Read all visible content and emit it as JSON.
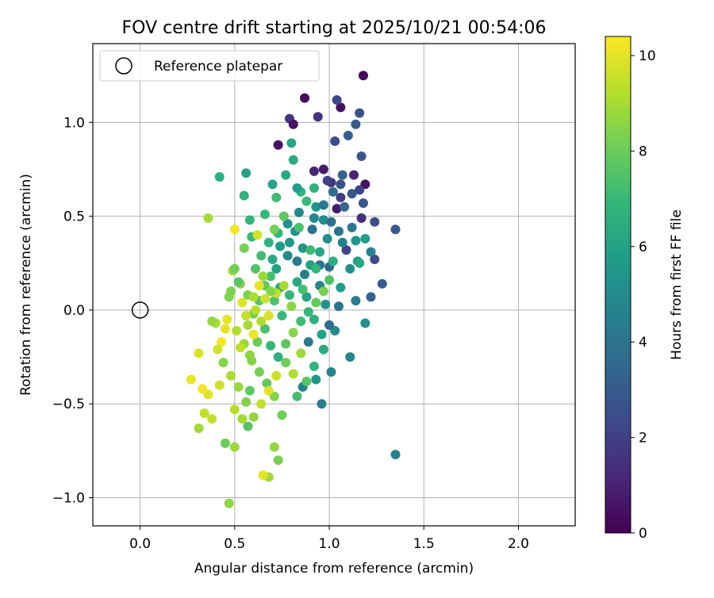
{
  "chart_data": {
    "type": "scatter",
    "title": "FOV centre drift starting at 2025/10/21 00:54:06",
    "xlabel": "Angular distance from reference (arcmin)",
    "ylabel": "Rotation from reference (arcmin)",
    "xlim": [
      -0.25,
      2.3
    ],
    "ylim": [
      -1.15,
      1.42
    ],
    "xticks": [
      0.0,
      0.5,
      1.0,
      1.5,
      2.0
    ],
    "xtick_labels": [
      "0.0",
      "0.5",
      "1.0",
      "1.5",
      "2.0"
    ],
    "yticks": [
      -1.0,
      -0.5,
      0.0,
      0.5,
      1.0
    ],
    "ytick_labels": [
      "−1.0",
      "−0.5",
      "0.0",
      "0.5",
      "1.0"
    ],
    "grid": true,
    "legend": {
      "position": "top-left",
      "entries": [
        "Reference platepar"
      ]
    },
    "reference_point": {
      "x": 0.0,
      "y": 0.0,
      "label": "Reference platepar"
    },
    "colorbar": {
      "label": "Hours from first FF file",
      "range": [
        0,
        10.4
      ],
      "ticks": [
        0,
        2,
        4,
        6,
        8,
        10
      ],
      "tick_labels": [
        "0",
        "2",
        "4",
        "6",
        "8",
        "10"
      ],
      "colormap": "viridis",
      "colors": [
        "#440154",
        "#482878",
        "#3e4989",
        "#31688e",
        "#26828e",
        "#1f9e89",
        "#35b779",
        "#6ece58",
        "#b5de2b",
        "#fde725"
      ]
    },
    "points": [
      [
        1.18,
        1.25,
        0.2
      ],
      [
        0.87,
        1.13,
        0.3
      ],
      [
        1.06,
        1.08,
        0.4
      ],
      [
        0.94,
        1.03,
        1.5
      ],
      [
        0.79,
        1.02,
        1.8
      ],
      [
        1.04,
        1.12,
        2.3
      ],
      [
        1.16,
        1.05,
        2.6
      ],
      [
        1.14,
        0.99,
        2.9
      ],
      [
        0.73,
        0.88,
        0.5
      ],
      [
        1.1,
        0.93,
        3.1
      ],
      [
        1.03,
        0.9,
        2.4
      ],
      [
        0.81,
        0.99,
        0.6
      ],
      [
        1.17,
        0.82,
        2.7
      ],
      [
        0.97,
        0.75,
        0.7
      ],
      [
        1.19,
        0.67,
        0.5
      ],
      [
        1.13,
        0.72,
        1.0
      ],
      [
        1.07,
        0.72,
        3.3
      ],
      [
        1.01,
        0.68,
        1.6
      ],
      [
        1.04,
        0.54,
        0.8
      ],
      [
        1.06,
        0.6,
        1.9
      ],
      [
        1.16,
        0.64,
        2.2
      ],
      [
        1.18,
        0.57,
        2.8
      ],
      [
        0.92,
        0.74,
        1.1
      ],
      [
        1.02,
        0.63,
        3.6
      ],
      [
        0.99,
        0.69,
        2.0
      ],
      [
        1.24,
        0.47,
        2.5
      ],
      [
        1.35,
        0.43,
        2.9
      ],
      [
        1.17,
        0.49,
        1.3
      ],
      [
        1.12,
        0.44,
        4.1
      ],
      [
        1.09,
        0.32,
        2.1
      ],
      [
        1.24,
        0.27,
        2.4
      ],
      [
        1.28,
        0.14,
        3.0
      ],
      [
        1.22,
        0.07,
        3.2
      ],
      [
        1.35,
        -0.77,
        4.5
      ],
      [
        1.19,
        -0.07,
        5.2
      ],
      [
        1.14,
        0.05,
        4.3
      ],
      [
        1.11,
        -0.25,
        4.8
      ],
      [
        1.01,
        -0.33,
        4.7
      ],
      [
        0.96,
        -0.5,
        4.4
      ],
      [
        0.93,
        -0.37,
        5.5
      ],
      [
        0.86,
        -0.41,
        4.6
      ],
      [
        0.89,
        -0.17,
        4.2
      ],
      [
        1.05,
        0.02,
        3.9
      ],
      [
        1.0,
        0.23,
        3.6
      ],
      [
        0.91,
        0.43,
        3.8
      ],
      [
        0.84,
        0.52,
        4.9
      ],
      [
        0.78,
        0.46,
        5.3
      ],
      [
        0.74,
        0.34,
        5.7
      ],
      [
        0.7,
        0.67,
        6.1
      ],
      [
        0.77,
        0.72,
        6.3
      ],
      [
        0.81,
        0.8,
        6.4
      ],
      [
        0.8,
        0.89,
        6.2
      ],
      [
        0.56,
        0.73,
        6.0
      ],
      [
        0.42,
        0.71,
        6.5
      ],
      [
        0.55,
        0.61,
        6.6
      ],
      [
        0.58,
        0.48,
        6.8
      ],
      [
        0.59,
        0.39,
        7.0
      ],
      [
        0.72,
        0.6,
        7.1
      ],
      [
        0.66,
        0.51,
        6.9
      ],
      [
        0.85,
        0.63,
        6.7
      ],
      [
        0.93,
        0.55,
        5.4
      ],
      [
        0.97,
        0.48,
        5.0
      ],
      [
        1.05,
        0.42,
        4.0
      ],
      [
        1.07,
        0.36,
        4.6
      ],
      [
        1.11,
        0.22,
        5.1
      ],
      [
        1.15,
        0.26,
        5.6
      ],
      [
        1.06,
        0.12,
        5.8
      ],
      [
        1.02,
        0.26,
        6.5
      ],
      [
        0.95,
        0.31,
        6.2
      ],
      [
        0.9,
        0.24,
        5.9
      ],
      [
        0.86,
        0.33,
        5.5
      ],
      [
        0.82,
        0.42,
        5.2
      ],
      [
        0.78,
        0.29,
        4.9
      ],
      [
        0.72,
        0.22,
        6.0
      ],
      [
        0.68,
        0.36,
        6.7
      ],
      [
        0.64,
        0.29,
        7.2
      ],
      [
        0.61,
        0.22,
        7.5
      ],
      [
        0.66,
        0.13,
        7.8
      ],
      [
        0.71,
        0.05,
        7.4
      ],
      [
        0.75,
        -0.03,
        7.0
      ],
      [
        0.79,
        0.08,
        6.8
      ],
      [
        0.83,
        0.15,
        6.3
      ],
      [
        0.88,
        0.07,
        6.1
      ],
      [
        0.92,
        -0.05,
        6.6
      ],
      [
        0.96,
        -0.13,
        5.9
      ],
      [
        0.98,
        0.03,
        5.3
      ],
      [
        1.03,
        -0.11,
        5.0
      ],
      [
        0.95,
        0.13,
        4.7
      ],
      [
        0.87,
        0.19,
        4.5
      ],
      [
        0.83,
        0.26,
        4.3
      ],
      [
        0.79,
        0.36,
        5.6
      ],
      [
        0.73,
        0.41,
        6.9
      ],
      [
        0.69,
        0.18,
        7.3
      ],
      [
        0.63,
        0.05,
        7.6
      ],
      [
        0.6,
        -0.02,
        8.0
      ],
      [
        0.57,
        0.08,
        8.3
      ],
      [
        0.53,
        0.14,
        8.6
      ],
      [
        0.49,
        0.21,
        8.9
      ],
      [
        0.51,
        -0.11,
        9.2
      ],
      [
        0.55,
        -0.18,
        8.8
      ],
      [
        0.59,
        -0.27,
        8.5
      ],
      [
        0.63,
        -0.33,
        8.2
      ],
      [
        0.67,
        -0.39,
        7.9
      ],
      [
        0.71,
        -0.46,
        8.4
      ],
      [
        0.75,
        -0.56,
        8.1
      ],
      [
        0.71,
        -0.73,
        8.7
      ],
      [
        0.73,
        -0.8,
        8.3
      ],
      [
        0.68,
        -0.89,
        8.9
      ],
      [
        0.65,
        -0.88,
        10.0
      ],
      [
        0.47,
        -1.03,
        8.6
      ],
      [
        0.5,
        -0.73,
        8.8
      ],
      [
        0.45,
        -0.71,
        8.0
      ],
      [
        0.57,
        -0.62,
        7.6
      ],
      [
        0.54,
        -0.58,
        9.0
      ],
      [
        0.5,
        -0.53,
        9.3
      ],
      [
        0.38,
        -0.58,
        9.5
      ],
      [
        0.36,
        -0.45,
        9.9
      ],
      [
        0.31,
        -0.63,
        8.9
      ],
      [
        0.33,
        -0.42,
        10.2
      ],
      [
        0.27,
        -0.37,
        10.1
      ],
      [
        0.31,
        -0.23,
        9.8
      ],
      [
        0.42,
        -0.4,
        9.6
      ],
      [
        0.43,
        -0.17,
        10.3
      ],
      [
        0.45,
        -0.1,
        10.0
      ],
      [
        0.4,
        -0.07,
        9.1
      ],
      [
        0.38,
        -0.06,
        8.7
      ],
      [
        0.47,
        0.07,
        8.4
      ],
      [
        0.5,
        0.22,
        8.1
      ],
      [
        0.52,
        0.15,
        7.7
      ],
      [
        0.48,
        0.1,
        8.3
      ],
      [
        0.36,
        0.49,
        9.0
      ],
      [
        0.5,
        0.43,
        10.2
      ],
      [
        0.62,
        0.4,
        9.7
      ],
      [
        0.55,
        0.33,
        8.2
      ],
      [
        0.63,
        0.13,
        10.0
      ],
      [
        0.66,
        0.06,
        9.6
      ],
      [
        0.61,
        0.0,
        9.3
      ],
      [
        0.57,
        -0.08,
        9.0
      ],
      [
        0.53,
        -0.2,
        9.4
      ],
      [
        0.58,
        -0.24,
        8.6
      ],
      [
        0.62,
        -0.17,
        8.0
      ],
      [
        0.66,
        -0.1,
        7.4
      ],
      [
        0.69,
        -0.19,
        7.0
      ],
      [
        0.73,
        -0.25,
        6.6
      ],
      [
        0.77,
        -0.18,
        7.7
      ],
      [
        0.81,
        -0.12,
        8.5
      ],
      [
        0.85,
        -0.06,
        7.2
      ],
      [
        0.89,
        -0.01,
        6.9
      ],
      [
        0.93,
        0.04,
        7.9
      ],
      [
        0.97,
        0.1,
        8.3
      ],
      [
        1.0,
        0.16,
        7.5
      ],
      [
        0.85,
        -0.23,
        8.9
      ],
      [
        0.81,
        -0.34,
        9.2
      ],
      [
        0.77,
        -0.28,
        8.1
      ],
      [
        0.72,
        -0.35,
        9.6
      ],
      [
        0.68,
        -0.43,
        9.9
      ],
      [
        0.64,
        -0.5,
        9.5
      ],
      [
        0.6,
        -0.57,
        8.7
      ],
      [
        0.56,
        -0.49,
        8.4
      ],
      [
        0.52,
        -0.41,
        8.8
      ],
      [
        0.48,
        -0.35,
        9.1
      ],
      [
        0.44,
        -0.28,
        8.5
      ],
      [
        0.41,
        -0.21,
        9.7
      ],
      [
        0.46,
        -0.05,
        10.0
      ],
      [
        0.34,
        -0.55,
        9.4
      ],
      [
        0.83,
        -0.46,
        7.3
      ],
      [
        0.88,
        -0.38,
        7.6
      ],
      [
        0.92,
        -0.3,
        6.8
      ],
      [
        0.97,
        -0.21,
        6.4
      ],
      [
        0.58,
        -0.43,
        7.8
      ],
      [
        0.7,
        0.27,
        6.3
      ],
      [
        0.74,
        0.12,
        6.0
      ],
      [
        0.9,
        0.32,
        7.1
      ],
      [
        0.84,
        0.44,
        7.4
      ],
      [
        0.76,
        0.5,
        7.8
      ],
      [
        0.71,
        0.43,
        8.2
      ],
      [
        0.92,
        0.65,
        6.7
      ],
      [
        0.88,
        0.58,
        7.0
      ],
      [
        0.83,
        0.65,
        5.8
      ],
      [
        0.92,
        0.49,
        4.8
      ],
      [
        0.97,
        0.56,
        4.2
      ],
      [
        1.01,
        0.47,
        3.8
      ],
      [
        1.08,
        0.55,
        3.4
      ],
      [
        1.12,
        0.62,
        2.8
      ],
      [
        1.06,
        0.67,
        2.6
      ],
      [
        1.14,
        0.37,
        5.4
      ],
      [
        1.19,
        0.38,
        5.8
      ],
      [
        1.16,
        0.25,
        6.1
      ],
      [
        1.22,
        0.31,
        4.7
      ],
      [
        0.99,
        0.38,
        5.1
      ],
      [
        0.95,
        0.24,
        4.1
      ],
      [
        1.0,
        -0.08,
        3.7
      ],
      [
        0.93,
        0.22,
        6.9
      ],
      [
        0.86,
        0.11,
        7.3
      ],
      [
        0.8,
        0.02,
        8.6
      ],
      [
        0.76,
        0.13,
        9.0
      ],
      [
        0.72,
        0.09,
        9.4
      ],
      [
        0.68,
        -0.03,
        9.8
      ],
      [
        0.64,
        -0.06,
        9.2
      ],
      [
        0.6,
        -0.13,
        10.1
      ],
      [
        0.56,
        -0.03,
        9.5
      ],
      [
        0.54,
        0.04,
        9.9
      ],
      [
        0.6,
        0.07,
        9.1
      ],
      [
        0.65,
        0.18,
        8.8
      ],
      [
        0.69,
        0.1,
        8.5
      ]
    ]
  }
}
